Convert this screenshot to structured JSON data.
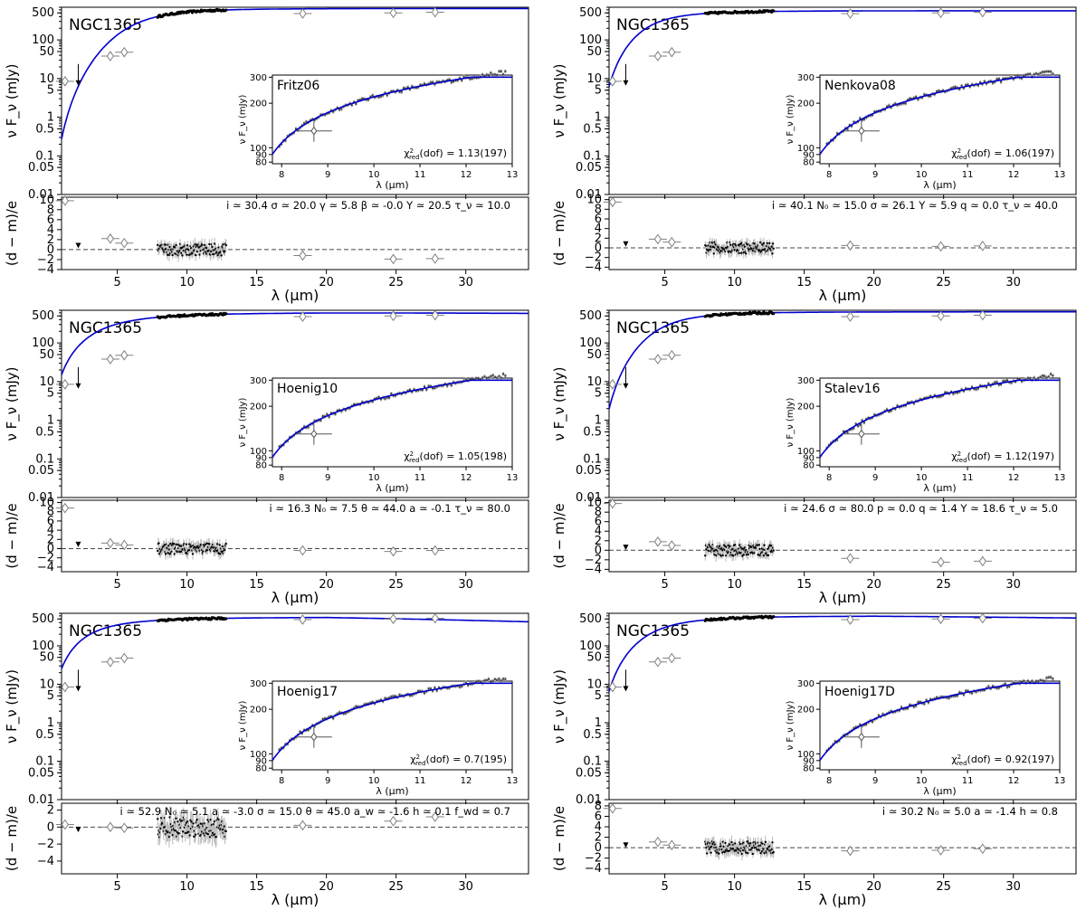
{
  "chart_data": {
    "type": "scatter",
    "layout": "3x2 grid of SED fits with residual panels",
    "shared": {
      "object_label": "NGC1365",
      "main_ylabel": "ν F_ν (mJy)",
      "residual_ylabel": "(d − m)/e",
      "xlabel": "λ (μm)",
      "inset_xlabel": "λ (μm)",
      "inset_ylabel": "ν F_ν (mJy)",
      "main_xlim": [
        1,
        34.5
      ],
      "main_ylim": [
        0.01,
        700
      ],
      "main_ytick_labels": [
        "500",
        "100",
        "50",
        "10",
        "5",
        "1",
        "0.5",
        "0.1",
        "0.05",
        "0.01"
      ],
      "main_ytick_values": [
        500,
        100,
        50,
        10,
        5,
        1,
        0.5,
        0.1,
        0.05,
        0.01
      ],
      "xtick_labels": [
        "5",
        "10",
        "15",
        "20",
        "25",
        "30"
      ],
      "xtick_values": [
        5,
        10,
        15,
        20,
        25,
        30
      ],
      "inset_xlim": [
        7.8,
        13
      ],
      "inset_ylim": [
        78,
        310
      ],
      "inset_xtick_labels": [
        "8",
        "9",
        "10",
        "11",
        "12",
        "13"
      ],
      "inset_xtick_values": [
        8,
        9,
        10,
        11,
        12,
        13
      ],
      "inset_ytick_labels": [
        "300",
        "200",
        "100",
        "90",
        "80"
      ],
      "inset_ytick_values": [
        300,
        200,
        100,
        90,
        80
      ],
      "photometry": [
        {
          "x": 1.25,
          "y": 8.5
        },
        {
          "x": 4.5,
          "y": 38
        },
        {
          "x": 5.5,
          "y": 48
        },
        {
          "x": 18.3,
          "y": 480
        },
        {
          "x": 24.8,
          "y": 500
        },
        {
          "x": 27.8,
          "y": 520
        }
      ],
      "upper_limit": {
        "x": 2.2,
        "y": 9
      },
      "spectrum_range": [
        7.9,
        12.8
      ],
      "colors": {
        "model": "#0000cc",
        "data": "#000000",
        "photometry": "#808080",
        "error": "#bbbbbb"
      }
    },
    "panels": [
      {
        "model_name": "Fritz06",
        "chi2_label": "χ²_red(dof) = 1.13(197)",
        "chi2_prefix": "χ",
        "chi2_sup": "2",
        "chi2_sub": "red",
        "chi2_value": "(dof) = 1.13(197)",
        "params_text": "i ≃ 30.4   σ ≃ 20.0   γ ≃ 5.8   β ≃ -0.0   Y ≃ 20.5   τ_ν ≃ 10.0",
        "resid_ylim": [
          -4,
          10.5
        ],
        "resid_ytick_values": [
          10,
          8,
          6,
          4,
          2,
          0,
          -2,
          -4
        ],
        "resid_ytick_labels": [
          "10",
          "8",
          "6",
          "4",
          "2",
          "0",
          "−2",
          "−4"
        ],
        "photometry_residuals": [
          9.8,
          2.2,
          1.3,
          -1.2,
          -1.9,
          -1.8
        ],
        "upper_limit_residual": 0.8,
        "model_curve": {
          "A": 650,
          "lc": 7.0,
          "n": 4.0,
          "decline": 0.0,
          "scale_min": 0.01
        }
      },
      {
        "model_name": "Nenkova08",
        "chi2_label": "χ²_red(dof) = 1.06(197)",
        "chi2_prefix": "χ",
        "chi2_sup": "2",
        "chi2_sub": "red",
        "chi2_value": "(dof) = 1.06(197)",
        "params_text": "i ≃ 40.1   N₀ ≃ 15.0 σ ≃ 26.1   Y ≃ 5.9   q ≃ 0.0   τ_ν ≃ 40.0",
        "resid_ylim": [
          -4.5,
          10.5
        ],
        "resid_ytick_values": [
          10,
          8,
          6,
          4,
          2,
          0,
          -2,
          -4
        ],
        "resid_ytick_labels": [
          "10",
          "8",
          "6",
          "4",
          "2",
          "0",
          "−2",
          "−4"
        ],
        "photometry_residuals": [
          9.5,
          1.8,
          1.2,
          0.5,
          0.3,
          0.4
        ],
        "upper_limit_residual": 0.8,
        "model_curve": {
          "A": 570,
          "lc": 4.5,
          "n": 3.0,
          "decline": 0.0,
          "scale_min": 0.08
        }
      },
      {
        "model_name": "Hoenig10",
        "chi2_label": "χ²_red(dof) = 1.05(198)",
        "chi2_prefix": "χ",
        "chi2_sup": "2",
        "chi2_sub": "red",
        "chi2_value": "(dof) = 1.05(198)",
        "params_text": "i ≃ 16.3   N₀ ≃ 7.5   θ ≃ 44.0   a ≃ -0.1   τ_ν ≃ 80.0",
        "resid_ylim": [
          -5,
          10.5
        ],
        "resid_ytick_values": [
          10,
          8,
          6,
          4,
          2,
          0,
          -2,
          -4
        ],
        "resid_ytick_labels": [
          "10",
          "8",
          "6",
          "4",
          "2",
          "0",
          "−2",
          "−4"
        ],
        "photometry_residuals": [
          8.8,
          1.2,
          0.8,
          -0.4,
          -0.6,
          -0.4
        ],
        "upper_limit_residual": 0.9,
        "model_curve": {
          "A": 620,
          "lc": 5.0,
          "n": 2.3,
          "decline": 0.05,
          "scale_min": 0.25
        }
      },
      {
        "model_name": "Stalev16",
        "chi2_label": "χ²_red(dof) = 1.12(197)",
        "chi2_prefix": "χ",
        "chi2_sup": "2",
        "chi2_sub": "red",
        "chi2_value": "(dof) = 1.12(197)",
        "params_text": "i ≃ 24.6   σ ≃ 80.0   p ≃ 0.0   q ≃ 1.4   Y ≃ 18.6   τ_ν ≃ 5.0",
        "resid_ylim": [
          -4.5,
          10.5
        ],
        "resid_ytick_values": [
          10,
          8,
          6,
          4,
          2,
          0,
          -2,
          -4
        ],
        "resid_ytick_labels": [
          "10",
          "8",
          "6",
          "4",
          "2",
          "0",
          "−2",
          "−4"
        ],
        "photometry_residuals": [
          9.8,
          1.8,
          1.0,
          -1.7,
          -2.5,
          -2.3
        ],
        "upper_limit_residual": 0.6,
        "model_curve": {
          "A": 640,
          "lc": 5.5,
          "n": 3.4,
          "decline": 0.0,
          "scale_min": 0.015
        }
      },
      {
        "model_name": "Hoenig17",
        "chi2_label": "χ²_red(dof) = 0.7(195)",
        "chi2_prefix": "χ",
        "chi2_sup": "2",
        "chi2_sub": "red",
        "chi2_value": "(dof) = 0.7(195)",
        "params_text": "i ≃ 52.9   N₀ ≃ 5.1   a ≃ -3.0   σ ≃ 15.0   θ ≃ 45.0   a_w ≃ -1.6  h ≃ 0.1    f_wd ≃ 0.7",
        "resid_ylim": [
          -5.5,
          2.8
        ],
        "resid_ytick_values": [
          2,
          0,
          -2,
          -4
        ],
        "resid_ytick_labels": [
          "2",
          "0",
          "−2",
          "−4"
        ],
        "photometry_residuals": [
          0.3,
          0.0,
          -0.1,
          0.2,
          0.7,
          1.2
        ],
        "upper_limit_residual": -0.3,
        "model_curve": {
          "A": 560,
          "lc": 4.0,
          "n": 2.2,
          "decline": 0.25,
          "scale_min": 1.5
        }
      },
      {
        "model_name": "Hoenig17D",
        "chi2_label": "χ²_red(dof) = 0.92(197)",
        "chi2_prefix": "χ",
        "chi2_sup": "2",
        "chi2_sub": "red",
        "chi2_value": "(dof) = 0.92(197)",
        "params_text": "i ≃ 30.2   N₀ ≃ 5.0   a ≃ -1.4   h ≃ 0.8",
        "resid_ylim": [
          -5,
          8.5
        ],
        "resid_ytick_values": [
          8,
          6,
          4,
          2,
          0,
          -2,
          -4
        ],
        "resid_ytick_labels": [
          "8",
          "6",
          "4",
          "2",
          "0",
          "−2",
          "−4"
        ],
        "photometry_residuals": [
          7.5,
          1.1,
          0.5,
          -0.6,
          -0.5,
          -0.2
        ],
        "upper_limit_residual": 0.5,
        "model_curve": {
          "A": 600,
          "lc": 5.0,
          "n": 2.8,
          "decline": 0.12,
          "scale_min": 0.35
        }
      }
    ]
  }
}
